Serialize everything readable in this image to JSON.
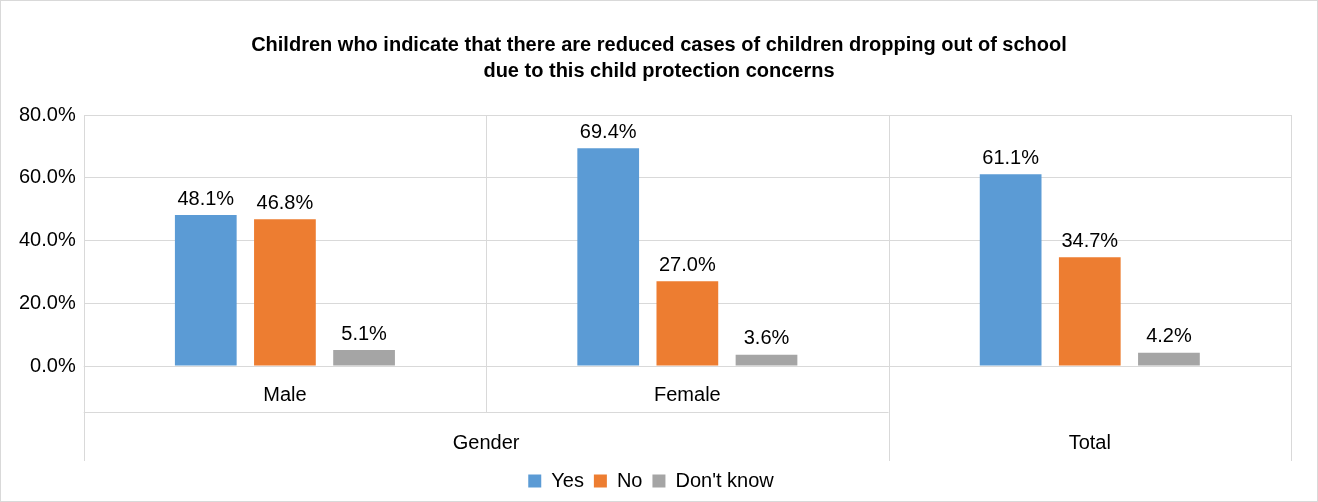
{
  "chart_data": {
    "type": "bar",
    "title": "Children who indicate that there are reduced cases of children dropping out of school due to this child protection concerns",
    "categories": [
      "Male",
      "Female",
      null
    ],
    "annotations": [
      "Gender",
      "Total"
    ],
    "series": [
      {
        "name": "Yes",
        "color": "#5b9bd5",
        "values": [
          48.1,
          69.4,
          61.1
        ],
        "value_labels": [
          "48.1%",
          "69.4%",
          "61.1%"
        ]
      },
      {
        "name": "No",
        "color": "#ed7d31",
        "values": [
          46.8,
          27.0,
          34.7
        ],
        "value_labels": [
          "46.8%",
          "27.0%",
          "34.7%"
        ]
      },
      {
        "name": "Don't know",
        "color": "#a5a5a5",
        "values": [
          5.1,
          3.6,
          4.2
        ],
        "value_labels": [
          "5.1%",
          "3.6%",
          "4.2%"
        ]
      }
    ],
    "ylim": [
      0,
      80
    ],
    "yticks": [
      {
        "value": 0,
        "label": "0.0%"
      },
      {
        "value": 20,
        "label": "20.0%"
      },
      {
        "value": 40,
        "label": "40.0%"
      },
      {
        "value": 60,
        "label": "60.0%"
      },
      {
        "value": 80,
        "label": "80.0%"
      }
    ],
    "grid": "y",
    "legend": "bottom"
  }
}
